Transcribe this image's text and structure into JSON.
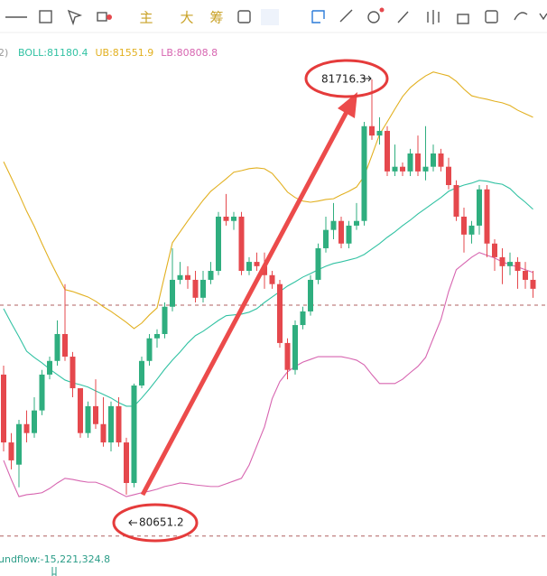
{
  "toolbar": {
    "labels": [
      "主",
      "大",
      "筹"
    ]
  },
  "chart_data": {
    "type": "candlestick",
    "legend_prefix": "2)",
    "footer_text": "undflow:-15,221,324.8",
    "ylim": [
      80461,
      81827
    ],
    "up_color": "#2fae7f",
    "down_color": "#e5484d",
    "price_lines": [
      81137,
      80545
    ],
    "annotations": [
      81716.3,
      80651.2
    ],
    "open": [
      80959,
      80785,
      80728,
      80832,
      80809,
      80867,
      80959,
      80994,
      81063,
      81005,
      80924,
      80809,
      80878,
      80832,
      80785,
      80878,
      80785,
      80681,
      80931,
      80994,
      81052,
      81063,
      81133,
      81202,
      81214,
      81202,
      81156,
      81202,
      81225,
      81364,
      81353,
      81364,
      81225,
      81248,
      81237,
      81214,
      81191,
      81040,
      80971,
      81086,
      81121,
      81202,
      81283,
      81330,
      81353,
      81295,
      81341,
      81353,
      81596,
      81572,
      81584,
      81480,
      81492,
      81480,
      81526,
      81480,
      81492,
      81526,
      81492,
      81445,
      81364,
      81318,
      81341,
      81434,
      81295,
      81260,
      81237,
      81248,
      81225,
      81202
    ],
    "high": [
      80982,
      80809,
      80843,
      80867,
      80901,
      80971,
      81005,
      81098,
      81191,
      81017,
      80913,
      80890,
      80947,
      80901,
      80890,
      80901,
      80797,
      80936,
      81005,
      81063,
      81075,
      81144,
      81283,
      81248,
      81237,
      81225,
      81225,
      81248,
      81376,
      81422,
      81376,
      81376,
      81260,
      81272,
      81272,
      81225,
      81202,
      81052,
      81098,
      81133,
      81214,
      81295,
      81364,
      81399,
      81364,
      81353,
      81399,
      81607,
      81716,
      81619,
      81596,
      81549,
      81503,
      81538,
      81572,
      81596,
      81549,
      81538,
      81515,
      81457,
      81387,
      81353,
      81445,
      81445,
      81306,
      81283,
      81272,
      81260,
      81248,
      81225
    ],
    "low": [
      80762,
      80716,
      80670,
      80785,
      80797,
      80855,
      80947,
      80982,
      80994,
      80901,
      80797,
      80797,
      80820,
      80774,
      80762,
      80774,
      80651,
      80670,
      80924,
      80982,
      81028,
      81052,
      81121,
      81191,
      81179,
      81144,
      81144,
      81191,
      81214,
      81341,
      81330,
      81214,
      81214,
      81225,
      81179,
      81179,
      81028,
      80947,
      80959,
      81075,
      81110,
      81191,
      81272,
      81306,
      81283,
      81283,
      81330,
      81341,
      81561,
      81549,
      81468,
      81468,
      81468,
      81468,
      81468,
      81457,
      81480,
      81480,
      81434,
      81353,
      81272,
      81295,
      81318,
      81260,
      81225,
      81191,
      81214,
      81179,
      81179,
      81156
    ],
    "close": [
      80785,
      80739,
      80832,
      80809,
      80867,
      80959,
      80994,
      81063,
      81005,
      80924,
      80809,
      80878,
      80832,
      80785,
      80878,
      80785,
      80681,
      80931,
      80994,
      81052,
      81063,
      81133,
      81202,
      81214,
      81202,
      81156,
      81202,
      81225,
      81364,
      81353,
      81364,
      81225,
      81248,
      81237,
      81214,
      81191,
      81040,
      80971,
      81086,
      81121,
      81202,
      81283,
      81330,
      81353,
      81295,
      81341,
      81353,
      81596,
      81572,
      81584,
      81480,
      81492,
      81480,
      81526,
      81480,
      81492,
      81526,
      81492,
      81445,
      81364,
      81318,
      81341,
      81434,
      81295,
      81260,
      81237,
      81248,
      81225,
      81202,
      81179
    ],
    "series": [
      {
        "name": "BOLL:81180.4",
        "color": "#32c2a3",
        "values": [
          81128,
          81091,
          81056,
          81019,
          81003,
          80989,
          80973,
          80959,
          80945,
          80938,
          80933,
          80927,
          80917,
          80908,
          80899,
          80887,
          80878,
          80878,
          80899,
          80922,
          80947,
          80973,
          80996,
          81017,
          81040,
          81059,
          81070,
          81084,
          81098,
          81110,
          81112,
          81114,
          81119,
          81128,
          81144,
          81158,
          81172,
          81186,
          81197,
          81209,
          81218,
          81228,
          81237,
          81244,
          81248,
          81253,
          81258,
          81267,
          81281,
          81295,
          81311,
          81325,
          81341,
          81355,
          81371,
          81385,
          81399,
          81413,
          81429,
          81438,
          81445,
          81450,
          81457,
          81455,
          81450,
          81447,
          81436,
          81417,
          81401,
          81383
        ]
      },
      {
        "name": "UB:81551.9",
        "color": "#e2b020",
        "values": [
          81505,
          81464,
          81422,
          81378,
          81339,
          81295,
          81253,
          81214,
          81177,
          81172,
          81165,
          81158,
          81147,
          81133,
          81121,
          81107,
          81093,
          81077,
          81091,
          81112,
          81130,
          81214,
          81297,
          81325,
          81353,
          81380,
          81406,
          81429,
          81445,
          81461,
          81478,
          81482,
          81487,
          81489,
          81487,
          81475,
          81452,
          81427,
          81413,
          81404,
          81401,
          81404,
          81408,
          81410,
          81420,
          81429,
          81440,
          81468,
          81521,
          81575,
          81607,
          81640,
          81672,
          81695,
          81711,
          81725,
          81735,
          81730,
          81725,
          81711,
          81691,
          81674,
          81669,
          81665,
          81660,
          81656,
          81649,
          81637,
          81628,
          81619
        ]
      },
      {
        "name": "LB:80808.8",
        "color": "#d765b0",
        "values": [
          80739,
          80690,
          80646,
          80651,
          80653,
          80656,
          80667,
          80681,
          80693,
          80690,
          80686,
          80683,
          80683,
          80676,
          80667,
          80656,
          80646,
          80651,
          80656,
          80660,
          80665,
          80672,
          80676,
          80681,
          80679,
          80676,
          80674,
          80672,
          80672,
          80679,
          80686,
          80693,
          80727,
          80776,
          80825,
          80897,
          80941,
          80966,
          80980,
          80991,
          80998,
          81005,
          81005,
          81005,
          81005,
          81001,
          80996,
          80984,
          80959,
          80936,
          80936,
          80936,
          80947,
          80964,
          80980,
          81003,
          81052,
          81100,
          81172,
          81228,
          81244,
          81260,
          81272,
          81265,
          81258,
          81248,
          81241,
          81235,
          81228,
          81221
        ]
      }
    ]
  }
}
